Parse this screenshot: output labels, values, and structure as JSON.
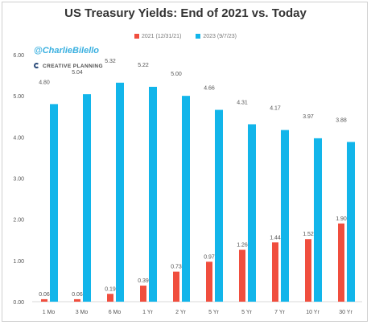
{
  "chart_data": {
    "type": "bar",
    "title": "US Treasury Yields: End of 2021 vs. Today",
    "categories": [
      "1 Mo",
      "3 Mo",
      "6 Mo",
      "1 Yr",
      "2 Yr",
      "5 Yr",
      "5 Yr",
      "7 Yr",
      "10 Yr",
      "30 Yr"
    ],
    "series": [
      {
        "name": "2021 (12/31/21)",
        "color": "#f04e3e",
        "values": [
          0.06,
          0.06,
          0.19,
          0.39,
          0.73,
          0.97,
          1.26,
          1.44,
          1.52,
          1.9
        ],
        "labels": [
          "0.06",
          "0.06",
          "0.19",
          "0.39",
          "0.73",
          "0.97",
          "1.26",
          "1.44",
          "1.52",
          "1.90"
        ]
      },
      {
        "name": "2023 (9/7/23)",
        "color": "#12b5ea",
        "values": [
          4.8,
          5.04,
          5.32,
          5.22,
          5.0,
          4.66,
          4.31,
          4.17,
          3.97,
          3.88
        ],
        "labels": [
          "4.80",
          "5.04",
          "5.32",
          "5.22",
          "5.00",
          "4.66",
          "4.31",
          "4.17",
          "3.97",
          "3.88"
        ]
      }
    ],
    "yticks": [
      "0.00",
      "1.00",
      "2.00",
      "3.00",
      "4.00",
      "5.00",
      "6.00"
    ],
    "ylim": [
      0,
      6
    ],
    "grid": false,
    "legend_position": "top-center"
  },
  "watermark": {
    "handle": "@CharlieBilello",
    "brand": "CREATIVE PLANNING",
    "brand_icon": "creative-planning-logo-icon"
  }
}
